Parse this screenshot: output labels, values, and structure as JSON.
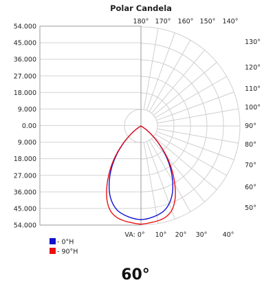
{
  "chart_data": {
    "type": "polar",
    "title": "Polar Candela",
    "radial_unit": "cd",
    "rlim": [
      0,
      54000
    ],
    "y_ticks": [
      "54.000",
      "45.000",
      "36.000",
      "27.000",
      "18.000",
      "9.000",
      "0.00",
      "9.000",
      "18.000",
      "27.000",
      "36.000",
      "45.000",
      "54.000"
    ],
    "angle_ticks_top": [
      "180°",
      "170°",
      "160°",
      "150°",
      "140°"
    ],
    "angle_ticks_right": [
      "130°",
      "120°",
      "110°",
      "100°",
      "90°",
      "80°",
      "70°",
      "60°",
      "50°"
    ],
    "angle_ticks_bottom": [
      "VA: 0°",
      "10°",
      "20°",
      "30°",
      "40°"
    ],
    "grid": true,
    "legend_position": "bottom-left",
    "series": [
      {
        "name": "- 0°H",
        "color": "#1010d0",
        "angles": [
          0,
          5,
          10,
          15,
          20,
          25,
          30,
          35,
          40,
          45,
          50,
          55,
          60
        ],
        "values": [
          51000,
          50500,
          49500,
          48000,
          45000,
          40500,
          34500,
          28000,
          21000,
          14000,
          8000,
          3500,
          0
        ]
      },
      {
        "name": "- 90°H",
        "color": "#e81010",
        "angles": [
          0,
          5,
          10,
          15,
          20,
          25,
          30,
          35,
          40,
          45,
          50,
          55,
          60
        ],
        "values": [
          53500,
          53000,
          52500,
          51500,
          49000,
          44000,
          37000,
          29500,
          22000,
          14500,
          8000,
          3500,
          0
        ]
      }
    ]
  },
  "beam_angle": "60°"
}
